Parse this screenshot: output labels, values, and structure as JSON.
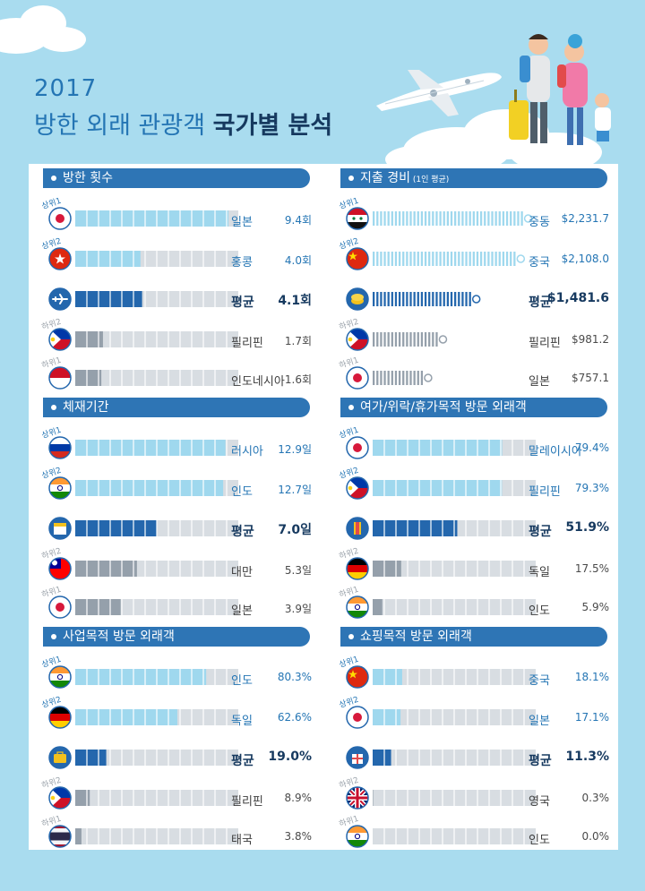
{
  "header": {
    "year": "2017",
    "title_main": "방한 외래 관광객",
    "title_strong": "국가별 분석"
  },
  "colors": {
    "background": "#a9dcef",
    "section_header": "#2e75b5",
    "top_bar": "#9fd8ee",
    "avg_bar": "#2467ad",
    "low_bar": "#95a0ab",
    "empty_bar": "#d8dde2",
    "top_text": "#2475b4",
    "avg_text": "#16395f"
  },
  "chart_data": [
    {
      "type": "bar",
      "title": "방한 횟수",
      "subtitle": "",
      "ylim": [
        0,
        10
      ],
      "bar_style": "solid",
      "rows": [
        {
          "rank": "상위1",
          "kind": "top",
          "category": "일본",
          "value": 9.4,
          "display": "9.4회",
          "icon": "flag-japan"
        },
        {
          "rank": "상위2",
          "kind": "top",
          "category": "홍콩",
          "value": 4.0,
          "display": "4.0회",
          "icon": "flag-hongkong"
        },
        {
          "rank": "",
          "kind": "avg",
          "category": "평균",
          "value": 4.1,
          "display": "4.1회",
          "icon": "airplane-icon"
        },
        {
          "rank": "하위2",
          "kind": "low",
          "category": "필리핀",
          "value": 1.7,
          "display": "1.7회",
          "icon": "flag-philippines"
        },
        {
          "rank": "하위1",
          "kind": "low",
          "category": "인도네시아",
          "value": 1.6,
          "display": "1.6회",
          "icon": "flag-indonesia"
        }
      ]
    },
    {
      "type": "bar",
      "title": "지출 경비",
      "subtitle": "(1인 평균)",
      "ylim": [
        0,
        2400
      ],
      "bar_style": "striped",
      "rows": [
        {
          "rank": "상위1",
          "kind": "top",
          "category": "중동",
          "value": 2231.7,
          "display": "$2,231.7",
          "icon": "flag-middle-east"
        },
        {
          "rank": "상위2",
          "kind": "top",
          "category": "중국",
          "value": 2108.0,
          "display": "$2,108.0",
          "icon": "flag-china"
        },
        {
          "rank": "",
          "kind": "avg",
          "category": "평균",
          "value": 1481.6,
          "display": "$1,481.6",
          "icon": "coin-icon"
        },
        {
          "rank": "하위2",
          "kind": "low",
          "category": "필리핀",
          "value": 981.2,
          "display": "$981.2",
          "icon": "flag-philippines"
        },
        {
          "rank": "하위1",
          "kind": "low",
          "category": "일본",
          "value": 757.1,
          "display": "$757.1",
          "icon": "flag-japan"
        }
      ]
    },
    {
      "type": "bar",
      "title": "체재기간",
      "subtitle": "",
      "ylim": [
        0,
        14
      ],
      "bar_style": "solid",
      "rows": [
        {
          "rank": "상위1",
          "kind": "top",
          "category": "러시아",
          "value": 12.9,
          "display": "12.9일",
          "icon": "flag-russia"
        },
        {
          "rank": "상위2",
          "kind": "top",
          "category": "인도",
          "value": 12.7,
          "display": "12.7일",
          "icon": "flag-india"
        },
        {
          "rank": "",
          "kind": "avg",
          "category": "평균",
          "value": 7.0,
          "display": "7.0일",
          "icon": "calendar-icon"
        },
        {
          "rank": "하위2",
          "kind": "low",
          "category": "대만",
          "value": 5.3,
          "display": "5.3일",
          "icon": "flag-taiwan"
        },
        {
          "rank": "하위1",
          "kind": "low",
          "category": "일본",
          "value": 3.9,
          "display": "3.9일",
          "icon": "flag-japan"
        }
      ]
    },
    {
      "type": "bar",
      "title": "여가/위락/휴가목적 방문 외래객",
      "subtitle": "",
      "ylim": [
        0,
        100
      ],
      "bar_style": "solid",
      "rows": [
        {
          "rank": "상위1",
          "kind": "top",
          "category": "말레이시아",
          "value": 79.4,
          "display": "79.4%",
          "icon": "flag-japan"
        },
        {
          "rank": "상위2",
          "kind": "top",
          "category": "필리핀",
          "value": 79.3,
          "display": "79.3%",
          "icon": "flag-philippines"
        },
        {
          "rank": "",
          "kind": "avg",
          "category": "평균",
          "value": 51.9,
          "display": "51.9%",
          "icon": "ticket-icon"
        },
        {
          "rank": "하위2",
          "kind": "low",
          "category": "독일",
          "value": 17.5,
          "display": "17.5%",
          "icon": "flag-germany"
        },
        {
          "rank": "하위1",
          "kind": "low",
          "category": "인도",
          "value": 5.9,
          "display": "5.9%",
          "icon": "flag-india"
        }
      ]
    },
    {
      "type": "bar",
      "title": "사업목적 방문 외래객",
      "subtitle": "",
      "ylim": [
        0,
        100
      ],
      "bar_style": "solid",
      "rows": [
        {
          "rank": "상위1",
          "kind": "top",
          "category": "인도",
          "value": 80.3,
          "display": "80.3%",
          "icon": "flag-india"
        },
        {
          "rank": "상위2",
          "kind": "top",
          "category": "독일",
          "value": 62.6,
          "display": "62.6%",
          "icon": "flag-germany"
        },
        {
          "rank": "",
          "kind": "avg",
          "category": "평균",
          "value": 19.0,
          "display": "19.0%",
          "icon": "briefcase-icon"
        },
        {
          "rank": "하위2",
          "kind": "low",
          "category": "필리핀",
          "value": 8.9,
          "display": "8.9%",
          "icon": "flag-philippines"
        },
        {
          "rank": "하위1",
          "kind": "low",
          "category": "태국",
          "value": 3.8,
          "display": "3.8%",
          "icon": "flag-thailand"
        }
      ]
    },
    {
      "type": "bar",
      "title": "쇼핑목적 방문 외래객",
      "subtitle": "",
      "ylim": [
        0,
        100
      ],
      "bar_style": "solid",
      "rows": [
        {
          "rank": "상위1",
          "kind": "top",
          "category": "중국",
          "value": 18.1,
          "display": "18.1%",
          "icon": "flag-china"
        },
        {
          "rank": "상위2",
          "kind": "top",
          "category": "일본",
          "value": 17.1,
          "display": "17.1%",
          "icon": "flag-japan"
        },
        {
          "rank": "",
          "kind": "avg",
          "category": "평균",
          "value": 11.3,
          "display": "11.3%",
          "icon": "shopping-bag-icon"
        },
        {
          "rank": "하위2",
          "kind": "low",
          "category": "영국",
          "value": 0.3,
          "display": "0.3%",
          "icon": "flag-uk"
        },
        {
          "rank": "하위1",
          "kind": "low",
          "category": "인도",
          "value": 0.0,
          "display": "0.0%",
          "icon": "flag-india"
        }
      ]
    }
  ]
}
